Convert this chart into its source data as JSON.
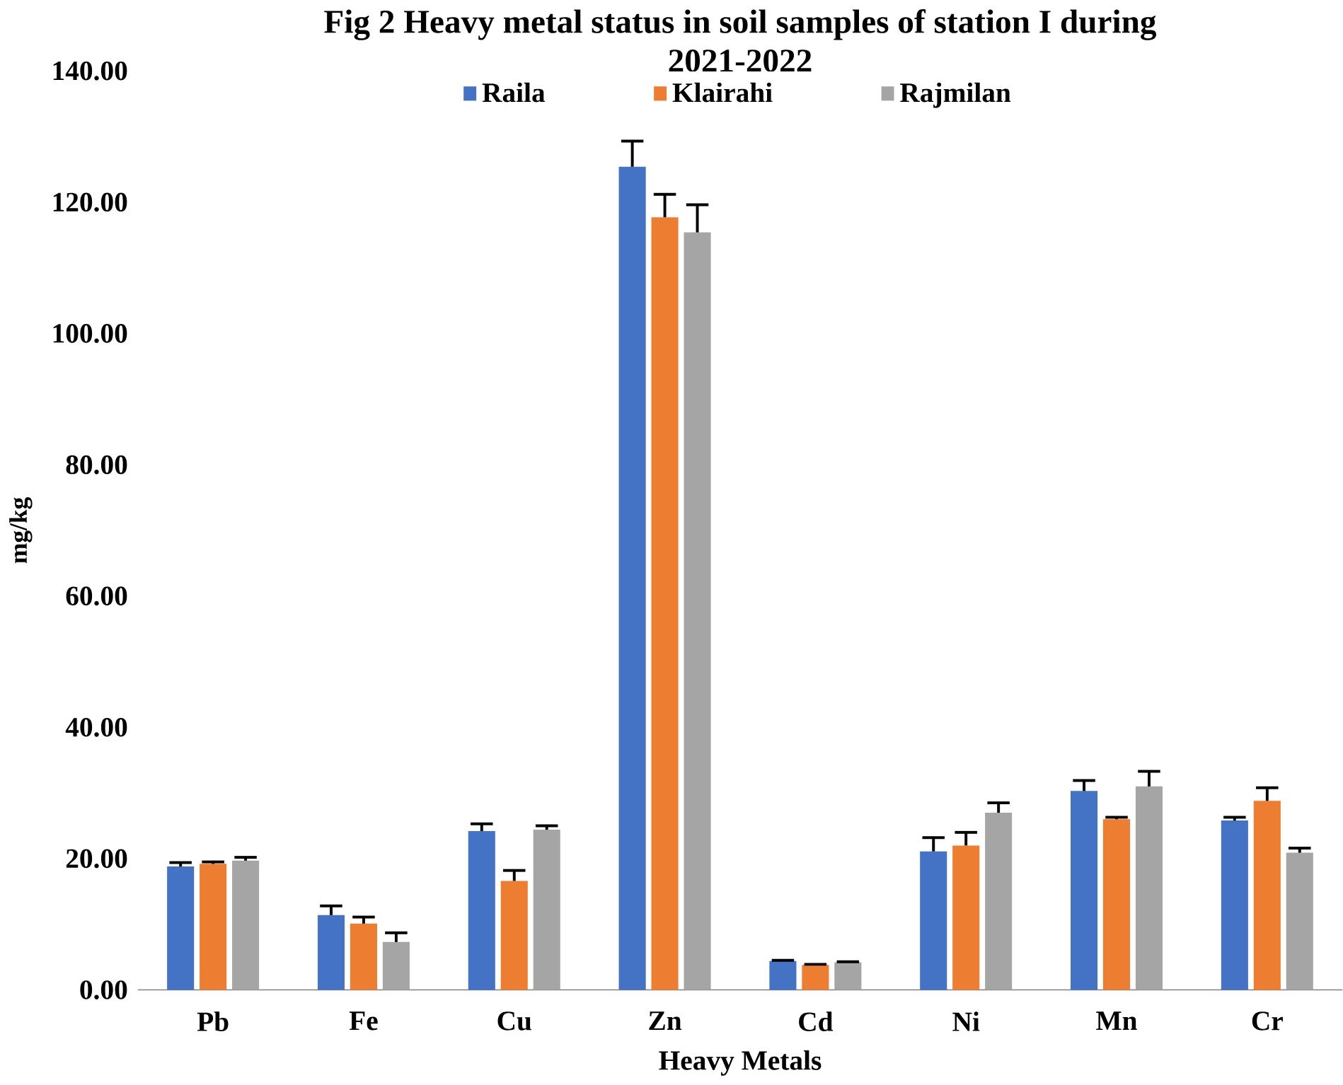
{
  "chart_data": {
    "type": "bar",
    "title": "Fig  2  Heavy metal status in soil samples of station I during 2021-2022",
    "xlabel": "Heavy Metals",
    "ylabel": "mg/kg",
    "categories": [
      "Pb",
      "Fe",
      "Cu",
      "Zn",
      "Cd",
      "Ni",
      "Mn",
      "Cr"
    ],
    "series": [
      {
        "name": "Raila",
        "color": "#4472c4",
        "values": [
          18.8,
          11.4,
          24.2,
          125.4,
          4.4,
          21.1,
          30.3,
          25.8
        ],
        "errors": [
          0.6,
          1.4,
          1.1,
          3.9,
          0.1,
          2.1,
          1.6,
          0.5
        ]
      },
      {
        "name": "Klairahi",
        "color": "#ed7d31",
        "values": [
          19.2,
          10.1,
          16.6,
          117.7,
          3.8,
          22.0,
          26.0,
          28.8
        ],
        "errors": [
          0.3,
          1.0,
          1.6,
          3.5,
          0.1,
          2.0,
          0.3,
          2.0
        ]
      },
      {
        "name": "Rajmilan",
        "color": "#a5a5a5",
        "values": [
          19.7,
          7.3,
          24.4,
          115.4,
          4.2,
          27.0,
          31.0,
          20.9
        ],
        "errors": [
          0.5,
          1.4,
          0.6,
          4.2,
          0.1,
          1.5,
          2.3,
          0.7
        ]
      }
    ],
    "ylim": [
      0,
      140
    ],
    "yticks": [
      {
        "value": 0,
        "label": "0.00"
      },
      {
        "value": 20,
        "label": "20.00"
      },
      {
        "value": 40,
        "label": "40.00"
      },
      {
        "value": 60,
        "label": "60.00"
      },
      {
        "value": 80,
        "label": "80.00"
      },
      {
        "value": 100,
        "label": "100.00"
      },
      {
        "value": 120,
        "label": "120.00"
      },
      {
        "value": 140,
        "label": "140.00"
      }
    ],
    "legend": "top"
  }
}
